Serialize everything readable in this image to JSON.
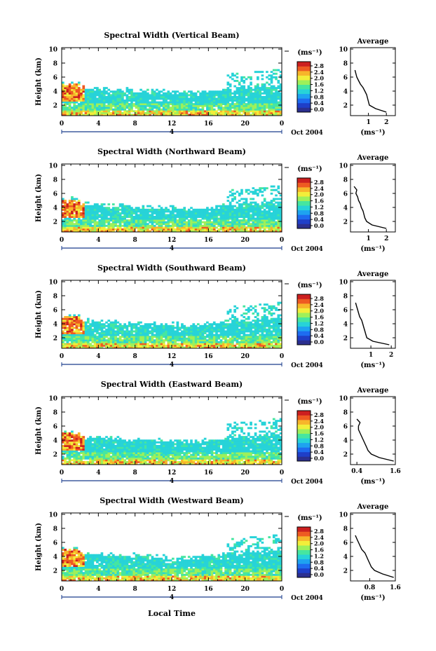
{
  "figure": {
    "date_label": "Oct 2004",
    "xlabel": "Local Time",
    "day_marker": "4",
    "colorbar_unit": "(ms⁻¹)",
    "colorbar_ticks": [
      "2.8",
      "2.4",
      "2.0",
      "1.6",
      "1.2",
      "0.8",
      "0.4",
      "0.0"
    ],
    "average_title": "Average",
    "average_xlabel": "(ms⁻¹)",
    "colors": {
      "colormap": [
        "#2b2f8f",
        "#1f3fc8",
        "#1e6cf0",
        "#1ea3f0",
        "#27d3d8",
        "#46e6a0",
        "#9ef05a",
        "#f2ee3a",
        "#f7b52a",
        "#ee5a22",
        "#cc1f1f"
      ]
    }
  },
  "chart_data": [
    {
      "type": "heatmap",
      "title": "Spectral Width (Vertical Beam)",
      "ylabel": "Height (km)",
      "xlabel": "Local Time",
      "x_ticks": [
        "0",
        "4",
        "8",
        "12",
        "16",
        "20",
        "0"
      ],
      "y_ticks": [
        "2",
        "4",
        "6",
        "8",
        "10"
      ],
      "xlim": [
        0,
        24
      ],
      "ylim": [
        0.5,
        10.2
      ],
      "colorbar_range": [
        0.0,
        3.0
      ],
      "colorbar_unit": "(ms⁻¹)",
      "average_profile": {
        "x_ticks": [
          "1",
          "2"
        ],
        "xlim": [
          0,
          2.5
        ],
        "height": [
          1,
          1.5,
          2,
          2.5,
          3,
          3.5,
          4,
          4.5,
          5,
          5.5,
          6,
          6.5,
          7
        ],
        "value": [
          2.0,
          1.4,
          1.05,
          1.0,
          0.95,
          0.9,
          0.8,
          0.7,
          0.55,
          0.45,
          0.35,
          0.3,
          0.25
        ]
      }
    },
    {
      "type": "heatmap",
      "title": "Spectral Width (Northward Beam)",
      "ylabel": "Height (km)",
      "xlabel": "Local Time",
      "x_ticks": [
        "0",
        "4",
        "8",
        "12",
        "16",
        "20",
        "0"
      ],
      "y_ticks": [
        "2",
        "4",
        "6",
        "8",
        "10"
      ],
      "xlim": [
        0,
        24
      ],
      "ylim": [
        0.5,
        10.2
      ],
      "colorbar_range": [
        0.0,
        3.0
      ],
      "colorbar_unit": "(ms⁻¹)",
      "average_profile": {
        "x_ticks": [
          "1",
          "2"
        ],
        "xlim": [
          0,
          2.5
        ],
        "height": [
          1,
          1.5,
          2,
          2.5,
          3,
          3.5,
          4,
          4.5,
          5,
          5.5,
          6,
          6.5,
          7
        ],
        "value": [
          2.0,
          1.2,
          0.9,
          0.8,
          0.75,
          0.7,
          0.6,
          0.55,
          0.45,
          0.4,
          0.3,
          0.35,
          0.2
        ]
      }
    },
    {
      "type": "heatmap",
      "title": "Spectral Width (Southward Beam)",
      "ylabel": "Height (km)",
      "xlabel": "Local Time",
      "x_ticks": [
        "0",
        "4",
        "8",
        "12",
        "16",
        "20",
        "0"
      ],
      "y_ticks": [
        "2",
        "4",
        "6",
        "8",
        "10"
      ],
      "xlim": [
        0,
        24
      ],
      "ylim": [
        0.5,
        10.2
      ],
      "colorbar_range": [
        0.0,
        3.0
      ],
      "colorbar_unit": "(ms⁻¹)",
      "average_profile": {
        "x_ticks": [
          "1",
          "2"
        ],
        "xlim": [
          0,
          2.2
        ],
        "height": [
          1,
          1.5,
          2,
          2.5,
          3,
          3.5,
          4,
          4.5,
          5,
          5.5,
          6,
          6.5,
          7
        ],
        "value": [
          1.9,
          1.1,
          0.8,
          0.75,
          0.7,
          0.65,
          0.6,
          0.55,
          0.45,
          0.4,
          0.35,
          0.3,
          0.25
        ]
      }
    },
    {
      "type": "heatmap",
      "title": "Spectral Width (Eastward Beam)",
      "ylabel": "Height (km)",
      "xlabel": "Local Time",
      "x_ticks": [
        "0",
        "4",
        "8",
        "12",
        "16",
        "20",
        "0"
      ],
      "y_ticks": [
        "2",
        "4",
        "6",
        "8",
        "10"
      ],
      "xlim": [
        0,
        24
      ],
      "ylim": [
        0.5,
        10.2
      ],
      "colorbar_range": [
        0.0,
        3.0
      ],
      "colorbar_unit": "(ms⁻¹)",
      "average_profile": {
        "x_ticks": [
          "0.4",
          "1.6"
        ],
        "xlim": [
          0.2,
          1.6
        ],
        "height": [
          1,
          1.5,
          2,
          2.5,
          3,
          3.5,
          4,
          4.5,
          5,
          5.5,
          6,
          6.5,
          7
        ],
        "value": [
          1.55,
          1.1,
          0.85,
          0.75,
          0.7,
          0.65,
          0.6,
          0.55,
          0.5,
          0.45,
          0.45,
          0.5,
          0.4
        ]
      }
    },
    {
      "type": "heatmap",
      "title": "Spectral Width (Westward Beam)",
      "ylabel": "Height (km)",
      "xlabel": "Local Time",
      "x_ticks": [
        "0",
        "4",
        "8",
        "12",
        "16",
        "20",
        "0"
      ],
      "y_ticks": [
        "2",
        "4",
        "6",
        "8",
        "10"
      ],
      "xlim": [
        0,
        24
      ],
      "ylim": [
        0.5,
        10.2
      ],
      "colorbar_range": [
        0.0,
        3.0
      ],
      "colorbar_unit": "(ms⁻¹)",
      "average_profile": {
        "x_ticks": [
          "0.8",
          "1.6"
        ],
        "xlim": [
          0.2,
          1.6
        ],
        "height": [
          1,
          1.5,
          2,
          2.5,
          3,
          3.5,
          4,
          4.5,
          5,
          5.5,
          6,
          6.5,
          7
        ],
        "value": [
          1.55,
          1.2,
          0.95,
          0.85,
          0.8,
          0.75,
          0.7,
          0.65,
          0.55,
          0.5,
          0.45,
          0.4,
          0.35
        ]
      }
    }
  ]
}
